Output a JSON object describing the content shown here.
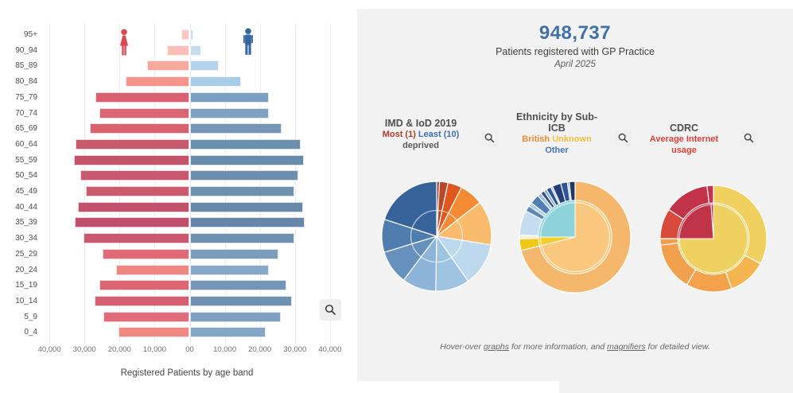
{
  "header": {
    "total": "948,737",
    "subtitle": "Patients registered with GP Practice",
    "period": "April 2025"
  },
  "panels": {
    "imd": {
      "title": "IMD & IoD 2019",
      "legend_most": "Most (1)",
      "legend_least": " Least (10)",
      "legend_suffix": "deprived",
      "most_color": "#a93c2c",
      "least_color": "#3f6fad"
    },
    "ethnicity": {
      "title_line1": "Ethnicity by Sub-",
      "title_line2": "ICB",
      "legend_british": "British",
      "legend_unknown": " Unknown",
      "legend_other": "Other",
      "british_color": "#ef8b31",
      "unknown_color": "#f0bf3e",
      "other_color": "#4577b5"
    },
    "cdrc": {
      "title": "CDRC",
      "legend_line1": "Average Internet",
      "legend_line2": "usage",
      "legend_color": "#e0413c"
    }
  },
  "footer": {
    "pre": "Hover-over ",
    "link1": "graphs",
    "mid": " for more information, and ",
    "link2": "magnifiers",
    "post": " for detailed view."
  },
  "icons": {
    "female_figure": "female-figure-icon",
    "male_figure": "male-figure-icon",
    "magnifier": "magnifier-icon",
    "female_color": "#d94856",
    "male_color": "#38659e"
  },
  "chart_data": [
    {
      "type": "bar",
      "subtype": "population-pyramid",
      "title": "Registered Patients by age band",
      "categories": [
        "95+",
        "90_94",
        "85_89",
        "80_84",
        "75_79",
        "70_74",
        "65_69",
        "60_64",
        "55_59",
        "50_54",
        "45_49",
        "40_44",
        "35_39",
        "30_34",
        "25_29",
        "20_24",
        "15_19",
        "10_14",
        "5_9",
        "0_4"
      ],
      "x_ticks": [
        "40,000",
        "30,000",
        "20,000",
        "10,000",
        "00",
        "10,000",
        "20,000",
        "30,000",
        "40,000"
      ],
      "xlim": [
        -40000,
        40000
      ],
      "grid": true,
      "series": [
        {
          "name": "Female",
          "values": [
            2400,
            6500,
            12100,
            18300,
            26800,
            25700,
            28500,
            32500,
            33000,
            31100,
            29500,
            31800,
            32800,
            30200,
            24900,
            21000,
            25800,
            27100,
            24700,
            20300
          ],
          "colors": [
            "#fac6c1",
            "#f9beb5",
            "#f8a99d",
            "#f5948a",
            "#d86070",
            "#db6573",
            "#da626f",
            "#c85a6e",
            "#c4536c",
            "#c9586f",
            "#cb5a6f",
            "#c3526c",
            "#bf4f6a",
            "#ca5870",
            "#e06a78",
            "#f08682",
            "#dd6673",
            "#d35f70",
            "#e06d79",
            "#f18884"
          ]
        },
        {
          "name": "Male",
          "values": [
            1100,
            3300,
            8200,
            14600,
            22600,
            22500,
            26200,
            31600,
            32600,
            31000,
            29900,
            32200,
            32800,
            29900,
            25200,
            22500,
            27500,
            29100,
            26000,
            21700
          ],
          "colors": [
            "#cadef0",
            "#c6dcef",
            "#b4d3ea",
            "#a8cde7",
            "#7ea0c0",
            "#7fa2c2",
            "#7495b5",
            "#6d8fae",
            "#688bac",
            "#6b8dae",
            "#7090b0",
            "#6889aa",
            "#6687a9",
            "#6e90b0",
            "#7b9cbd",
            "#88a8c8",
            "#7495b6",
            "#7090b0",
            "#7e9fc0",
            "#86a6c6"
          ]
        }
      ]
    },
    {
      "type": "pie",
      "subtype": "sunburst",
      "title": "IMD & IoD 2019",
      "legend": "Most (1) Least (10) deprived",
      "unit": "degrees",
      "inner": "same",
      "inner_ratio": 1.0,
      "guide_ratio": 0.47,
      "outer": [
        {
          "deg": 3,
          "color": "#9a3a28"
        },
        {
          "deg": 9,
          "color": "#b9472b"
        },
        {
          "deg": 15,
          "color": "#e0571e"
        },
        {
          "deg": 25,
          "color": "#f28b33"
        },
        {
          "deg": 47,
          "color": "#fbbb6c"
        },
        {
          "deg": 46,
          "color": "#bed9ee"
        },
        {
          "deg": 36,
          "color": "#9ec4e2"
        },
        {
          "deg": 36,
          "color": "#8db4d8"
        },
        {
          "deg": 36,
          "color": "#6791bd"
        },
        {
          "deg": 35,
          "color": "#4f7dad"
        },
        {
          "deg": 72,
          "color": "#35639a"
        }
      ]
    },
    {
      "type": "pie",
      "subtype": "sunburst",
      "title": "Ethnicity by Sub-ICB",
      "legend": "British Unknown Other",
      "unit": "degrees",
      "inner_ratio": 0.66,
      "guide_ratio": 0.62,
      "outer": [
        {
          "deg": 256,
          "color": "#f5b76b"
        },
        {
          "deg": 12,
          "color": "#f2c614"
        },
        {
          "deg": 4,
          "color": "#faf0cf"
        },
        {
          "deg": 26,
          "color": "#c6ddf1"
        },
        {
          "deg": 6,
          "color": "#5b88bb"
        },
        {
          "deg": 4,
          "color": "#a9c9e4"
        },
        {
          "deg": 10,
          "color": "#4f7fb5"
        },
        {
          "deg": 4,
          "color": "#9fc0dc"
        },
        {
          "deg": 4,
          "color": "#2e4d8e"
        },
        {
          "deg": 3,
          "color": "#7ea6cc"
        },
        {
          "deg": 5,
          "color": "#30549b"
        },
        {
          "deg": 2,
          "color": "#9fc0dc"
        },
        {
          "deg": 9,
          "color": "#253f7a"
        },
        {
          "deg": 7,
          "color": "#30549b"
        },
        {
          "deg": 2,
          "color": "#8fb3d6"
        },
        {
          "deg": 6,
          "color": "#1f3864"
        }
      ],
      "inner": [
        {
          "deg": 256,
          "color": "#f9c87e"
        },
        {
          "deg": 14,
          "color": "#f4ce2a"
        },
        {
          "deg": 90,
          "color": "#8ed3d9"
        }
      ]
    },
    {
      "type": "pie",
      "subtype": "sunburst",
      "title": "CDRC Average Internet usage",
      "unit": "degrees",
      "inner_ratio": 0.67,
      "guide_ratio": 0.64,
      "outer": [
        {
          "deg": 118,
          "color": "#f0d15f"
        },
        {
          "deg": 42,
          "color": "#f4b44f"
        },
        {
          "deg": 50,
          "color": "#f3a24b"
        },
        {
          "deg": 53,
          "color": "#f1a04d"
        },
        {
          "deg": 7,
          "color": "#ef9f4d"
        },
        {
          "deg": 33,
          "color": "#d84b3b"
        },
        {
          "deg": 50,
          "color": "#c23249"
        },
        {
          "deg": 7,
          "color": "#c43350"
        }
      ],
      "inner": [
        {
          "deg": 270,
          "color": "#eed161"
        },
        {
          "deg": 86,
          "color": "#c13349"
        },
        {
          "deg": 4,
          "color": "#c83952"
        }
      ]
    }
  ]
}
